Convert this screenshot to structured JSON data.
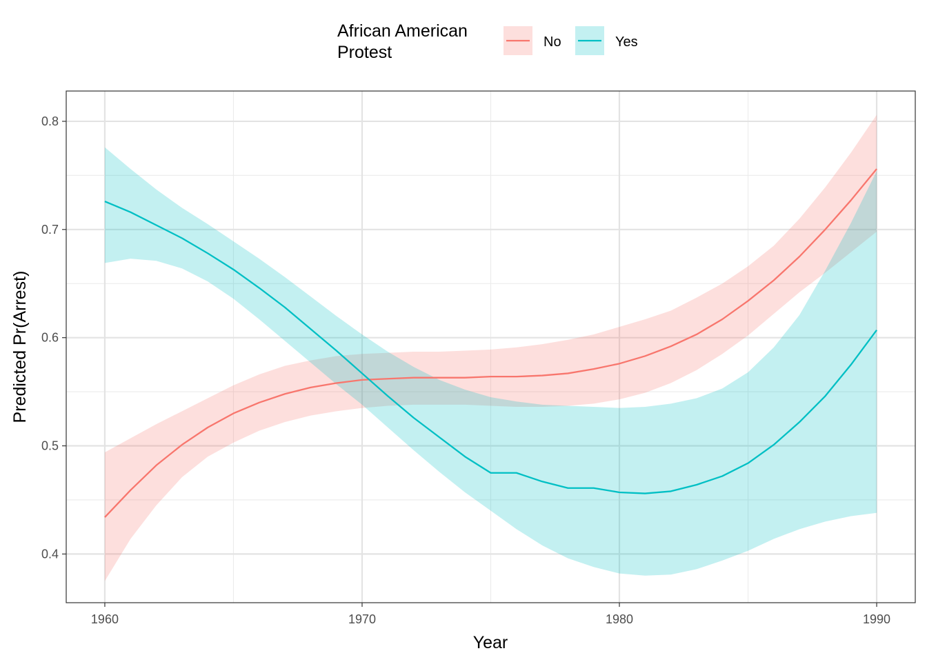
{
  "chart_data": {
    "type": "line",
    "xlabel": "Year",
    "ylabel": "Predicted Pr(Arrest)",
    "xlim": [
      1958.5,
      1991.5
    ],
    "ylim": [
      0.355,
      0.828
    ],
    "x_ticks": [
      1960,
      1970,
      1980,
      1990
    ],
    "y_ticks": [
      0.4,
      0.5,
      0.6,
      0.7,
      0.8
    ],
    "x_tick_labels": [
      "1960",
      "1970",
      "1980",
      "1990"
    ],
    "y_tick_labels": [
      "0.4",
      "0.5",
      "0.6",
      "0.7",
      "0.8"
    ],
    "grid": true,
    "legend": {
      "title_lines": [
        "African American",
        "Protest"
      ],
      "position": "top"
    },
    "x": [
      1960,
      1961,
      1962,
      1963,
      1964,
      1965,
      1966,
      1967,
      1968,
      1969,
      1970,
      1971,
      1972,
      1973,
      1974,
      1975,
      1976,
      1977,
      1978,
      1979,
      1980,
      1981,
      1982,
      1983,
      1984,
      1985,
      1986,
      1987,
      1988,
      1989,
      1990
    ],
    "series": [
      {
        "name": "No",
        "color": "#F8766D",
        "fill": "#F8766D",
        "values": [
          0.434,
          0.459,
          0.482,
          0.501,
          0.517,
          0.53,
          0.54,
          0.548,
          0.554,
          0.558,
          0.561,
          0.562,
          0.563,
          0.563,
          0.563,
          0.564,
          0.564,
          0.565,
          0.567,
          0.571,
          0.576,
          0.583,
          0.592,
          0.603,
          0.617,
          0.634,
          0.653,
          0.675,
          0.7,
          0.727,
          0.756
        ],
        "lower": [
          0.375,
          0.414,
          0.445,
          0.471,
          0.49,
          0.503,
          0.514,
          0.522,
          0.528,
          0.532,
          0.535,
          0.537,
          0.538,
          0.538,
          0.538,
          0.537,
          0.536,
          0.536,
          0.537,
          0.539,
          0.543,
          0.549,
          0.558,
          0.57,
          0.585,
          0.602,
          0.622,
          0.642,
          0.66,
          0.679,
          0.698
        ],
        "upper": [
          0.494,
          0.507,
          0.52,
          0.532,
          0.544,
          0.556,
          0.566,
          0.574,
          0.579,
          0.583,
          0.585,
          0.586,
          0.587,
          0.587,
          0.588,
          0.589,
          0.591,
          0.594,
          0.598,
          0.603,
          0.61,
          0.617,
          0.625,
          0.637,
          0.65,
          0.666,
          0.685,
          0.71,
          0.739,
          0.771,
          0.806
        ]
      },
      {
        "name": "Yes",
        "color": "#00BFC4",
        "fill": "#00BFC4",
        "values": [
          0.726,
          0.716,
          0.704,
          0.692,
          0.678,
          0.663,
          0.646,
          0.628,
          0.608,
          0.588,
          0.567,
          0.546,
          0.526,
          0.508,
          0.49,
          0.475,
          0.475,
          0.467,
          0.461,
          0.461,
          0.457,
          0.456,
          0.458,
          0.464,
          0.472,
          0.484,
          0.501,
          0.522,
          0.546,
          0.575,
          0.607
        ],
        "lower": [
          0.669,
          0.673,
          0.671,
          0.664,
          0.652,
          0.636,
          0.617,
          0.597,
          0.577,
          0.557,
          0.538,
          0.517,
          0.496,
          0.476,
          0.457,
          0.44,
          0.423,
          0.408,
          0.396,
          0.388,
          0.382,
          0.38,
          0.381,
          0.386,
          0.394,
          0.403,
          0.414,
          0.423,
          0.43,
          0.435,
          0.438
        ],
        "upper": [
          0.776,
          0.756,
          0.737,
          0.72,
          0.705,
          0.689,
          0.673,
          0.656,
          0.638,
          0.62,
          0.603,
          0.587,
          0.573,
          0.561,
          0.552,
          0.545,
          0.541,
          0.538,
          0.537,
          0.536,
          0.535,
          0.536,
          0.539,
          0.544,
          0.553,
          0.568,
          0.591,
          0.621,
          0.662,
          0.706,
          0.754
        ]
      }
    ]
  }
}
